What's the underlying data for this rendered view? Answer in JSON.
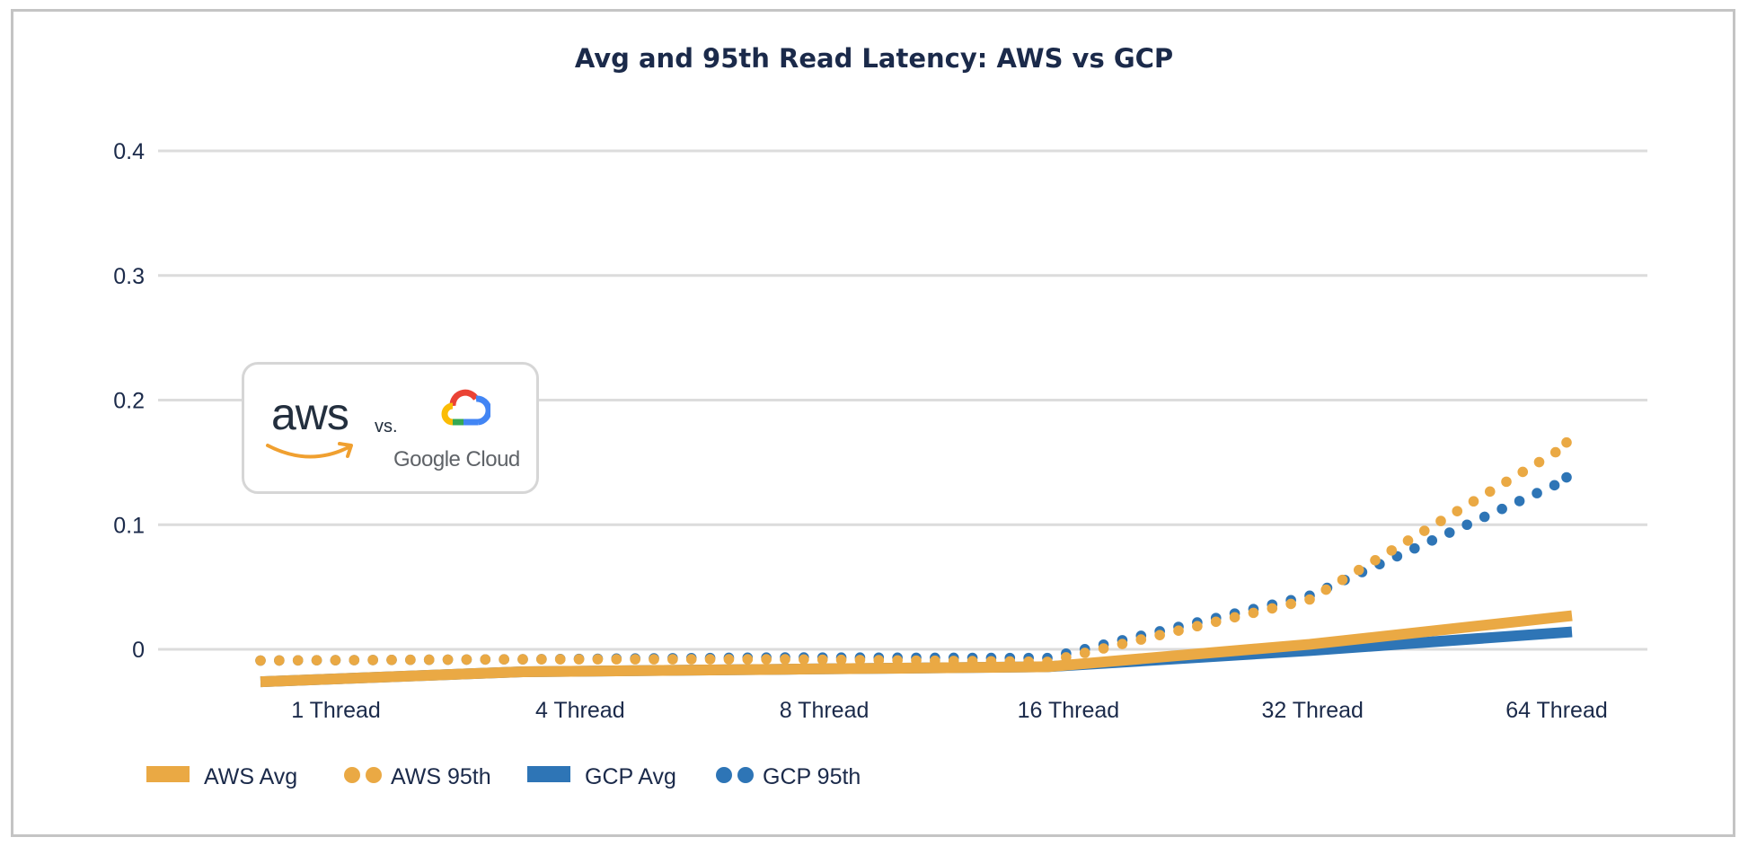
{
  "colors": {
    "aws": "#eaa944",
    "gcp": "#2e75b6",
    "text": "#1b2a4a",
    "grid": "#dcdcdc"
  },
  "logo": {
    "aws_text": "aws",
    "vs_text": "vs.",
    "gcp_text": "Google Cloud"
  },
  "chart_data": {
    "type": "line",
    "title": "Avg and 95th Read Latency: AWS vs GCP",
    "xlabel": "",
    "ylabel": "",
    "categories": [
      "1 Thread",
      "4 Thread",
      "8 Thread",
      "16 Thread",
      "32 Thread",
      "64 Thread"
    ],
    "yticks": [
      "0",
      "0.1",
      "0.2",
      "0.3",
      "0.4"
    ],
    "ylim": [
      0,
      0.4
    ],
    "grid": true,
    "legend_position": "bottom-left",
    "series": [
      {
        "name": "AWS Avg",
        "style": "solid",
        "color": "#eaa944",
        "values": [
          -0.026,
          -0.018,
          -0.016,
          -0.014,
          0.004,
          0.027
        ]
      },
      {
        "name": "AWS 95th",
        "style": "dotted",
        "color": "#eaa944",
        "values": [
          -0.009,
          -0.008,
          -0.008,
          -0.01,
          0.04,
          0.166
        ]
      },
      {
        "name": "GCP Avg",
        "style": "solid",
        "color": "#2e75b6",
        "values": [
          -0.026,
          -0.018,
          -0.016,
          -0.014,
          -0.001,
          0.014
        ]
      },
      {
        "name": "GCP 95th",
        "style": "dotted",
        "color": "#2e75b6",
        "values": [
          -0.009,
          -0.008,
          -0.0065,
          -0.007,
          0.043,
          0.138
        ]
      }
    ]
  }
}
